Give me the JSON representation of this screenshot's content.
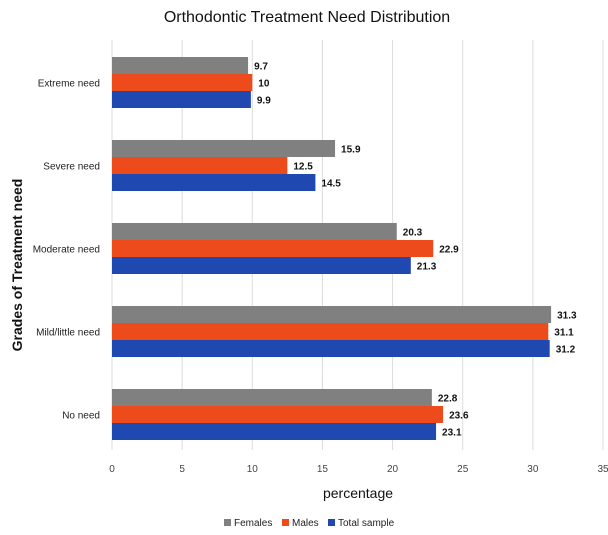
{
  "chart_data": {
    "type": "bar",
    "orientation": "horizontal",
    "title": "Orthodontic Treatment Need Distribution",
    "xlabel": "percentage",
    "ylabel": "Grades of Treatment need",
    "categories": [
      "Extreme need",
      "Severe need",
      "Moderate need",
      "Mild/little need",
      "No need"
    ],
    "series": [
      {
        "name": "Females",
        "color": "#808080",
        "values": [
          9.7,
          15.9,
          20.3,
          31.3,
          22.8
        ]
      },
      {
        "name": "Males",
        "color": "#ee4b1c",
        "values": [
          10,
          12.5,
          22.9,
          31.1,
          23.6
        ]
      },
      {
        "name": "Total sample",
        "color": "#1f48b0",
        "values": [
          9.9,
          14.5,
          21.3,
          31.2,
          23.1
        ]
      }
    ],
    "data_labels": [
      [
        "9.7",
        "15.9",
        "20.3",
        "31.3",
        "22.8"
      ],
      [
        "10",
        "12.5",
        "22.9",
        "31.1",
        "23.6"
      ],
      [
        "9.9",
        "14.5",
        "21.3",
        "31.2",
        "23.1"
      ]
    ],
    "xlim": [
      0,
      35
    ],
    "xticks": [
      "0",
      "5",
      "10",
      "15",
      "20",
      "25",
      "30",
      "35"
    ],
    "grid": "vertical",
    "legend": "bottom"
  }
}
